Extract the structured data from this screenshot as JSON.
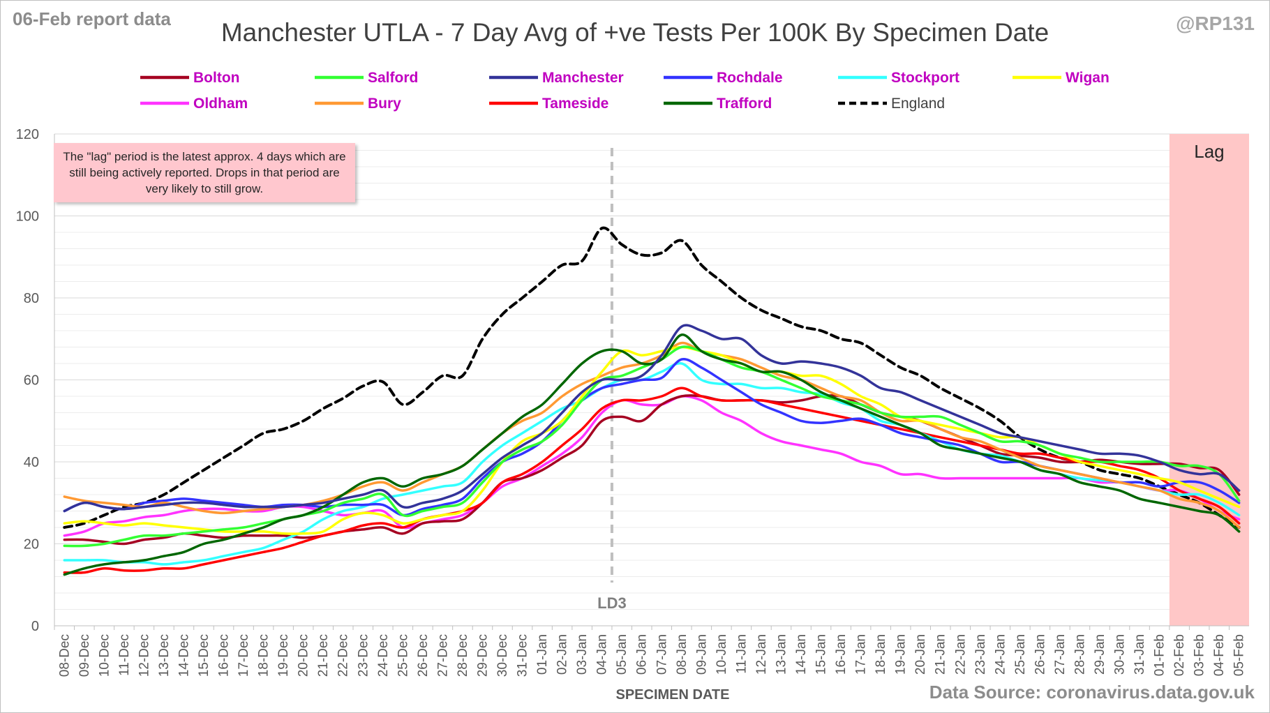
{
  "report_label": "06-Feb report data",
  "handle": "@RP131",
  "source": "Data Source: coronavirus.data.gov.uk",
  "note": "The \"lag\" period is the latest approx. 4 days which are still being actively reported. Drops in that period are very likely to still grow.",
  "colors": {
    "Bolton": "#a50021",
    "Salford": "#33ff33",
    "Manchester": "#333399",
    "Rochdale": "#3333ff",
    "Stockport": "#33ffff",
    "Wigan": "#ffff00",
    "Oldham": "#ff33ff",
    "Bury": "#ff9933",
    "Tameside": "#ff0000",
    "Trafford": "#006600",
    "England": "#000000",
    "lag_band": "#ffc7c7",
    "legend_text": "#c000c0"
  },
  "chart_data": {
    "type": "line",
    "title": "Manchester UTLA - 7 Day Avg of +ve Tests Per 100K By Specimen Date",
    "xlabel": "SPECIMEN DATE",
    "ylabel": "",
    "ylim": [
      0,
      120
    ],
    "yticks": [
      0,
      20,
      40,
      60,
      80,
      100,
      120
    ],
    "grid": true,
    "legend_position": "top",
    "categories": [
      "08-Dec",
      "09-Dec",
      "10-Dec",
      "11-Dec",
      "12-Dec",
      "13-Dec",
      "14-Dec",
      "15-Dec",
      "16-Dec",
      "17-Dec",
      "18-Dec",
      "19-Dec",
      "20-Dec",
      "21-Dec",
      "22-Dec",
      "23-Dec",
      "24-Dec",
      "25-Dec",
      "26-Dec",
      "27-Dec",
      "28-Dec",
      "29-Dec",
      "30-Dec",
      "31-Dec",
      "01-Jan",
      "02-Jan",
      "03-Jan",
      "04-Jan",
      "05-Jan",
      "06-Jan",
      "07-Jan",
      "08-Jan",
      "09-Jan",
      "10-Jan",
      "11-Jan",
      "12-Jan",
      "13-Jan",
      "14-Jan",
      "15-Jan",
      "16-Jan",
      "17-Jan",
      "18-Jan",
      "19-Jan",
      "20-Jan",
      "21-Jan",
      "22-Jan",
      "23-Jan",
      "24-Jan",
      "25-Jan",
      "26-Jan",
      "27-Jan",
      "28-Jan",
      "29-Jan",
      "30-Jan",
      "31-Jan",
      "01-Feb",
      "02-Feb",
      "03-Feb",
      "04-Feb",
      "05-Feb"
    ],
    "annotations": [
      {
        "label": "LD3",
        "category": "05-Jan",
        "style": "dashed-vertical"
      },
      {
        "label": "Lag",
        "from": "02-Feb",
        "to": "05-Feb",
        "style": "shaded-band"
      }
    ],
    "series": [
      {
        "name": "Bolton",
        "values": [
          21,
          21,
          20.5,
          20,
          21,
          21.5,
          22.5,
          22,
          21.5,
          22,
          22,
          22,
          21.5,
          22,
          23,
          23.5,
          24,
          22.5,
          25,
          25.5,
          26,
          30,
          35,
          36,
          38,
          41,
          44,
          50,
          51,
          50,
          54,
          56,
          56,
          55,
          55,
          55,
          54.5,
          55,
          56,
          56,
          54,
          52,
          51,
          50,
          48,
          46,
          44,
          42,
          41.5,
          41,
          40,
          40,
          40.5,
          40,
          39.5,
          39.5,
          39.5,
          38.5,
          38,
          32
        ]
      },
      {
        "name": "Salford",
        "values": [
          19.5,
          19.5,
          20,
          21,
          22,
          22,
          22.5,
          23,
          23.5,
          24,
          25,
          26,
          27,
          28,
          30,
          31,
          32,
          27,
          28,
          29,
          30,
          35,
          40,
          43,
          45,
          49,
          55,
          60,
          61,
          63,
          65,
          68,
          67,
          65,
          63,
          62,
          60,
          58,
          56,
          55,
          54,
          52,
          51,
          51,
          51,
          49,
          47,
          45,
          45,
          44,
          42,
          41,
          40,
          40,
          40,
          40,
          39,
          39,
          37,
          30.5
        ]
      },
      {
        "name": "Manchester",
        "values": [
          28,
          30,
          29,
          28.5,
          29,
          29.5,
          30,
          30,
          29.5,
          29,
          29,
          29,
          29.5,
          30,
          31,
          32,
          33,
          29,
          30,
          31,
          33,
          37,
          41,
          44,
          47,
          52,
          57,
          60,
          60,
          61,
          66,
          73,
          72,
          70,
          70,
          66,
          64,
          64.5,
          64,
          63,
          61,
          58,
          57,
          55,
          53,
          51,
          49,
          47,
          46,
          45,
          44,
          43,
          42,
          42,
          41.5,
          40,
          38,
          37,
          37,
          33
        ]
      },
      {
        "name": "Rochdale",
        "values": [
          28,
          30,
          29,
          28.5,
          30,
          30.5,
          31,
          30.5,
          30,
          29.5,
          29,
          29.5,
          29.5,
          29,
          29.5,
          29.5,
          29.5,
          27,
          28.5,
          29.5,
          31,
          36,
          40,
          42,
          45,
          50,
          55,
          58,
          59,
          60,
          60.5,
          65,
          63,
          60,
          57,
          54,
          52,
          50,
          49.5,
          50,
          50.5,
          49,
          47,
          46,
          45,
          44,
          42,
          40,
          40,
          39,
          38,
          37,
          36,
          35,
          35,
          34,
          35,
          35,
          33,
          30
        ]
      },
      {
        "name": "Stockport",
        "values": [
          16,
          16,
          16,
          15.5,
          15.5,
          15,
          15.5,
          16,
          17,
          18,
          19,
          21,
          23,
          26,
          28,
          29,
          31,
          32,
          33,
          34,
          35,
          40,
          44,
          47,
          50,
          53,
          55,
          58,
          60,
          60,
          62,
          64,
          60,
          59,
          59,
          58,
          58,
          57,
          56.5,
          54.5,
          53,
          50,
          49,
          47,
          45,
          43,
          42,
          41.5,
          40,
          38,
          37,
          36,
          35.5,
          35,
          34,
          33,
          32,
          32,
          30,
          27
        ]
      },
      {
        "name": "Wigan",
        "values": [
          25,
          25.5,
          25,
          24.5,
          25,
          24.5,
          24,
          23.5,
          23,
          23,
          23,
          22.5,
          22.5,
          23,
          26,
          27.5,
          27,
          25,
          26,
          27,
          28,
          33,
          40,
          45,
          47,
          50,
          56,
          62,
          67,
          66,
          67,
          68,
          67,
          66,
          64,
          62,
          62,
          61,
          61,
          59,
          56,
          54,
          51,
          50,
          49,
          48,
          47,
          46,
          46,
          44,
          42,
          40,
          39,
          38,
          37,
          36,
          35,
          33,
          31,
          29
        ]
      },
      {
        "name": "Oldham",
        "values": [
          22,
          23,
          25,
          25.5,
          26.5,
          27,
          28,
          28.5,
          28.5,
          28,
          28,
          29,
          29,
          28,
          27,
          27.5,
          28,
          24,
          25,
          26,
          27,
          30,
          34,
          36,
          39,
          42,
          46,
          52,
          55,
          54,
          54,
          56,
          55,
          52,
          50,
          47,
          45,
          44,
          43,
          42,
          40,
          39,
          37,
          37,
          36,
          36,
          36,
          36,
          36,
          36,
          36,
          36,
          35,
          35,
          34,
          33,
          33,
          31,
          28,
          26
        ]
      },
      {
        "name": "Bury",
        "values": [
          31.5,
          30.5,
          30,
          29.5,
          29,
          30,
          29,
          28,
          27.5,
          28,
          28.5,
          29,
          29.5,
          30.5,
          32,
          34,
          35,
          33,
          35,
          37,
          39,
          43,
          47,
          50,
          52,
          56,
          59,
          61,
          63,
          64,
          66,
          69,
          67,
          66,
          65,
          63,
          61,
          60,
          58,
          56,
          55,
          52,
          50,
          50,
          48,
          46,
          45,
          43,
          41,
          39,
          38,
          37,
          36,
          35,
          34,
          33,
          31,
          30,
          28,
          24
        ]
      },
      {
        "name": "Tameside",
        "values": [
          13,
          13,
          14,
          13.5,
          13.5,
          14,
          14,
          15,
          16,
          17,
          18,
          19,
          20.5,
          22,
          23,
          24.5,
          25,
          24,
          26,
          27,
          28,
          30,
          35,
          37,
          40,
          44,
          48,
          53,
          55,
          55,
          56,
          58,
          56,
          55,
          55,
          55,
          54,
          53,
          52,
          51,
          50,
          49,
          48,
          47,
          46,
          45,
          44,
          43,
          42,
          42,
          41,
          40,
          40,
          39,
          38,
          36,
          33,
          31,
          29,
          25
        ]
      },
      {
        "name": "Trafford",
        "values": [
          12.5,
          14,
          15,
          15.5,
          16,
          17,
          18,
          20,
          21,
          22.5,
          24,
          26,
          27,
          29,
          32,
          35,
          36,
          34,
          36,
          37,
          39,
          43,
          47,
          51,
          54,
          59,
          64,
          67,
          67,
          64,
          65,
          71,
          67,
          65,
          64,
          62,
          62,
          60,
          57,
          55,
          53,
          51,
          49,
          47,
          44,
          43,
          42,
          41,
          40,
          38,
          37,
          35,
          34,
          33,
          31,
          30,
          29,
          28,
          27,
          23
        ]
      },
      {
        "name": "England",
        "values": [
          24,
          25,
          27,
          29,
          30,
          32,
          35,
          38,
          41,
          44,
          47,
          48,
          50,
          53,
          55.5,
          58.5,
          59.5,
          54,
          57,
          61,
          61,
          70,
          76,
          80,
          84,
          88,
          89,
          97,
          93,
          90.5,
          91,
          94,
          88,
          84,
          80,
          77,
          75,
          73,
          72,
          70,
          69,
          66,
          63,
          61,
          58,
          55.5,
          53,
          50,
          46,
          43,
          41,
          40,
          38,
          37,
          36,
          34,
          32,
          30,
          27,
          24
        ]
      }
    ]
  }
}
